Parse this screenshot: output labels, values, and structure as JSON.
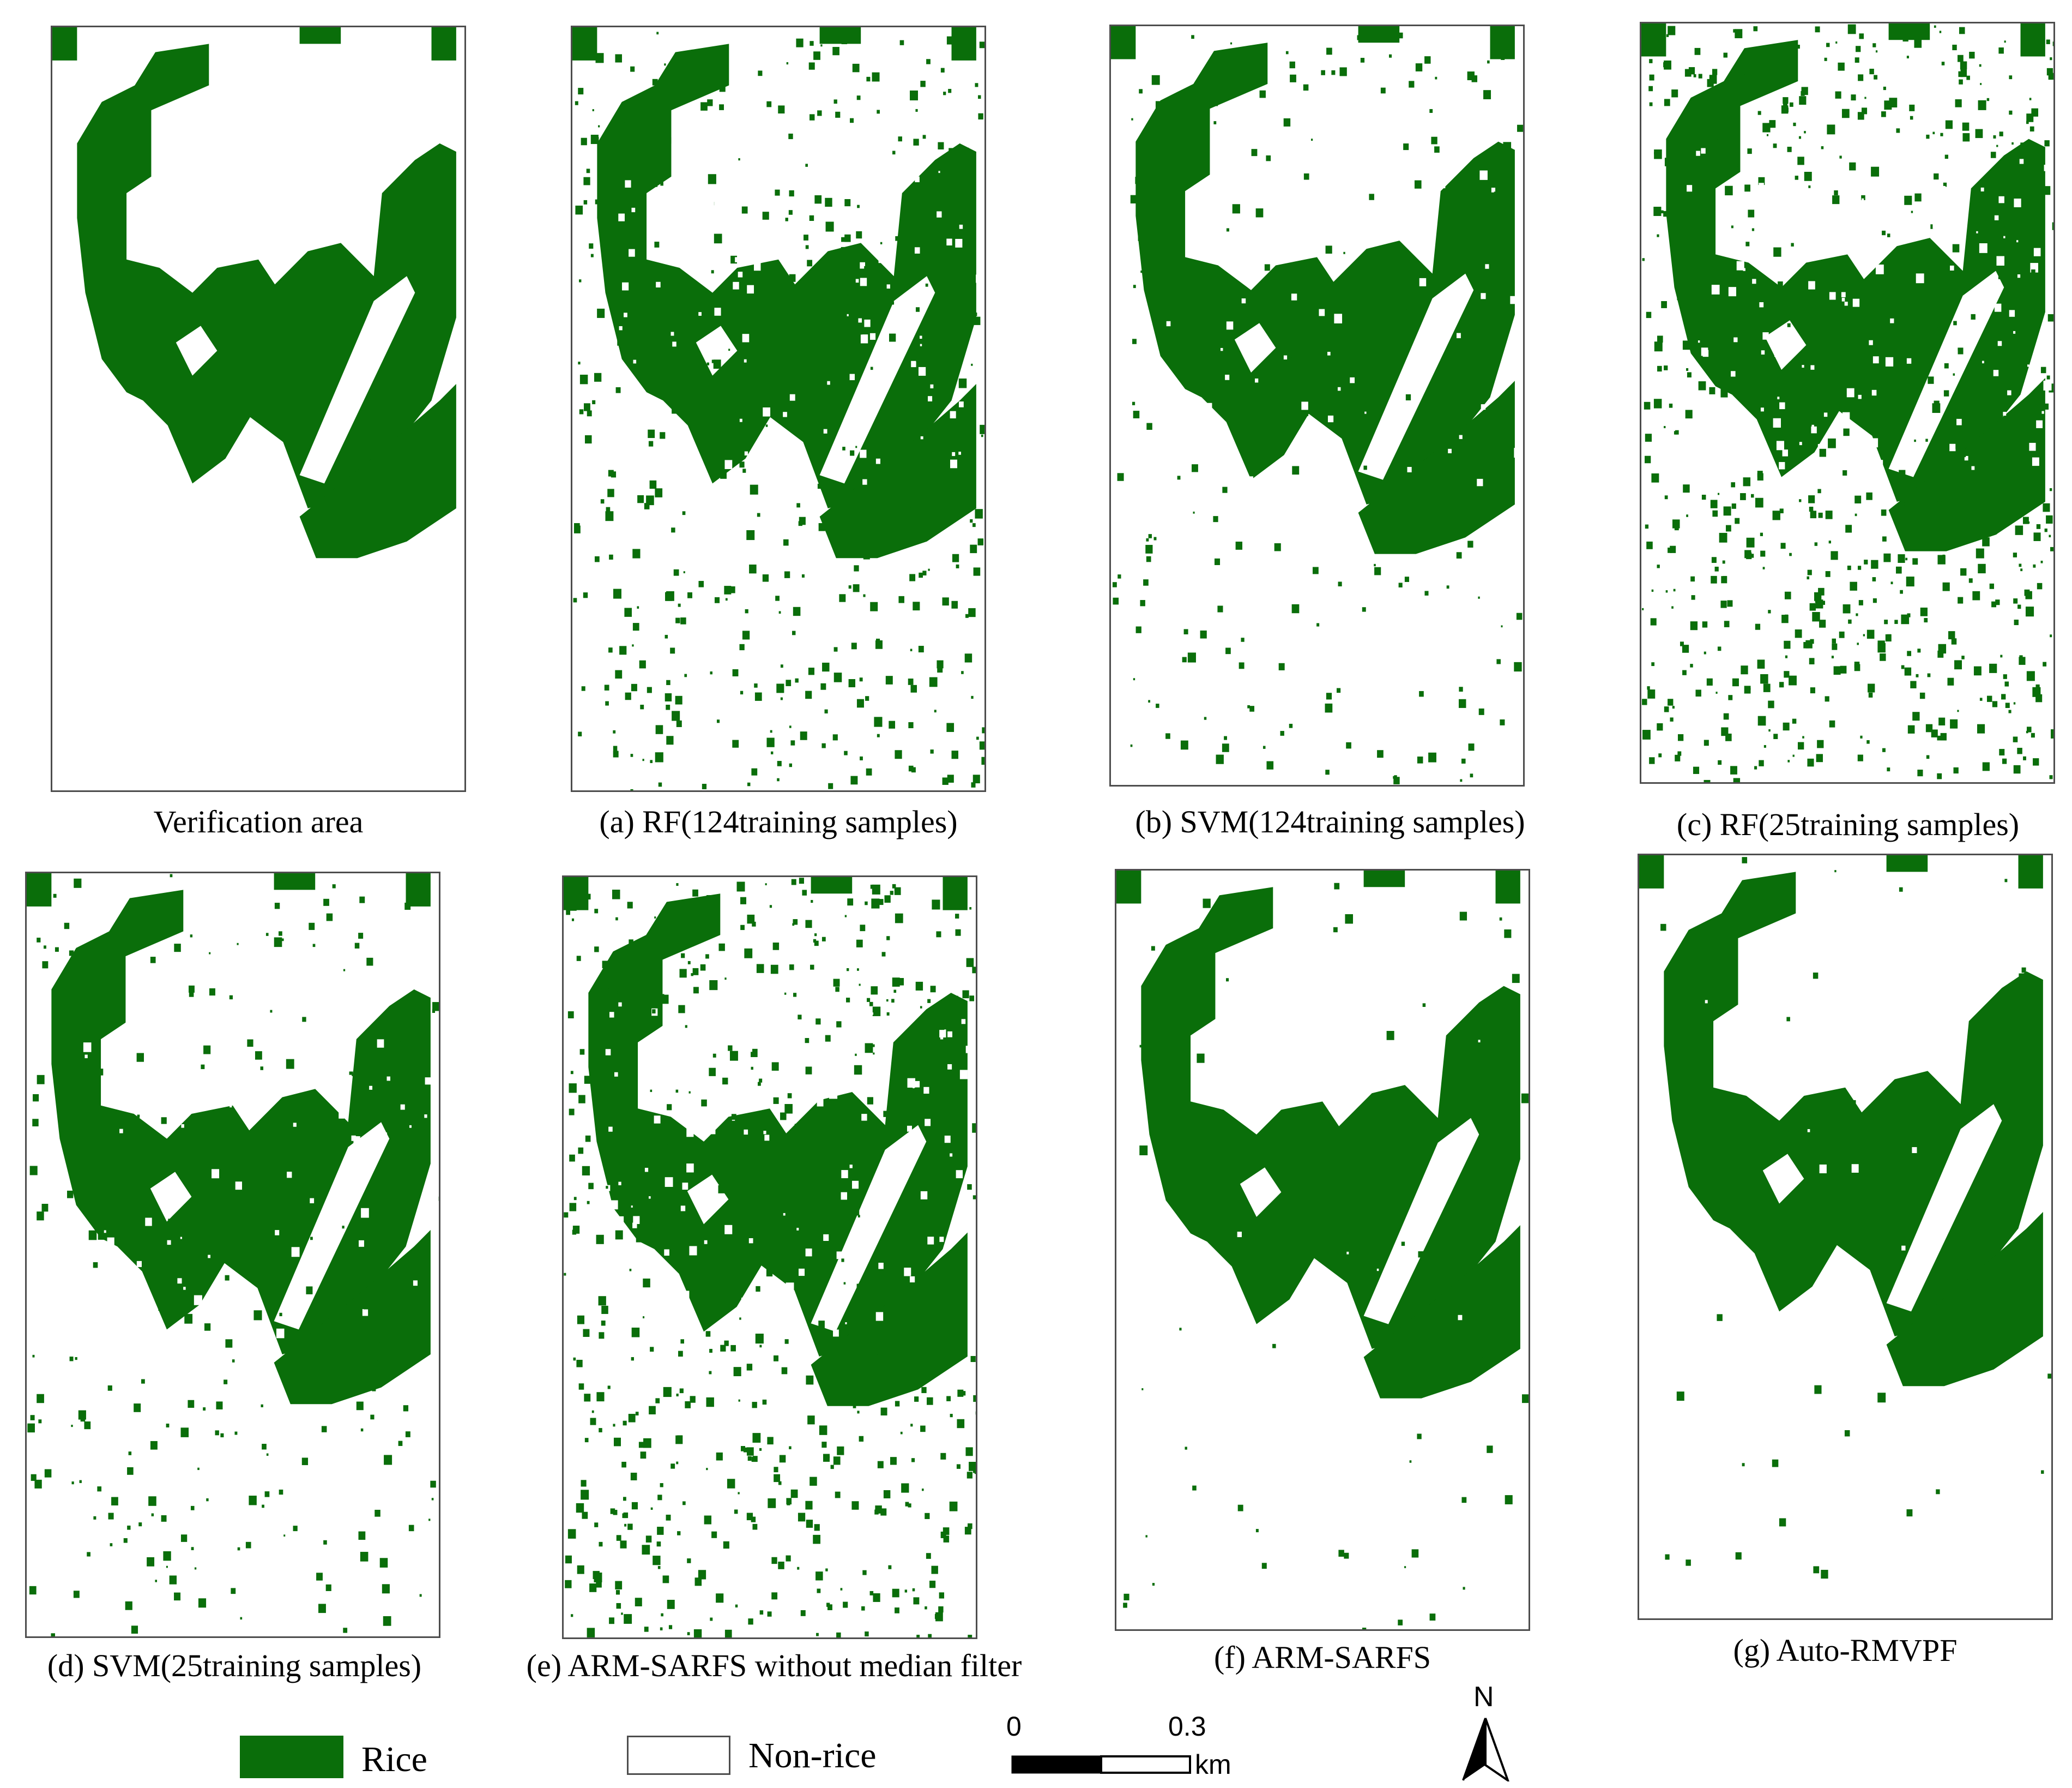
{
  "colors": {
    "rice": "#0a6e0a",
    "non_rice": "#ffffff",
    "border": "#4d4d4d"
  },
  "panels": [
    {
      "id": "verification",
      "caption": "Verification area",
      "noise": 0.0
    },
    {
      "id": "a",
      "caption": "(a) RF(124training samples)",
      "noise": 0.55
    },
    {
      "id": "b",
      "caption": "(b) SVM(124training samples)",
      "noise": 0.25
    },
    {
      "id": "c",
      "caption": "(c) RF(25training samples)",
      "noise": 0.85
    },
    {
      "id": "d",
      "caption": "(d) SVM(25training samples)",
      "noise": 0.3
    },
    {
      "id": "e",
      "caption": "(e) ARM-SARFS without median filter",
      "noise": 0.7
    },
    {
      "id": "f",
      "caption": "(f) ARM-SARFS",
      "noise": 0.08
    },
    {
      "id": "g",
      "caption": "(g) Auto-RMVPF",
      "noise": 0.05
    }
  ],
  "legend": {
    "rice_label": "Rice",
    "non_rice_label": "Non-rice"
  },
  "scale_bar": {
    "start_label": "0",
    "end_label": "0.3",
    "unit": "km"
  },
  "north_arrow": {
    "label": "N",
    "icon": "north-arrow-icon"
  }
}
